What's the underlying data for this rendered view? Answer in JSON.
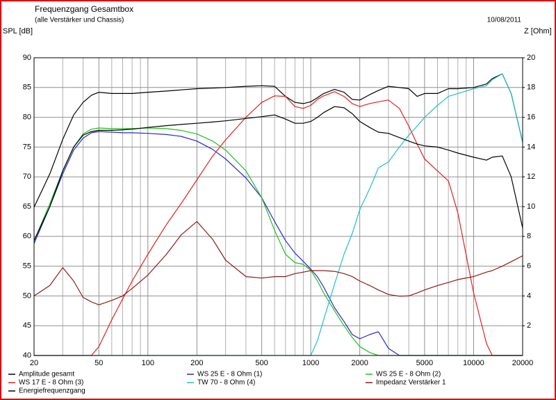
{
  "chart_data": {
    "type": "line",
    "title": "Frequenzgang Gesamtbox",
    "subtitle": "(alle Verstärker und Chassis)",
    "date": "10/08/2011",
    "ylabel": "SPL [dB]",
    "y2label": "Z [Ohm]",
    "log_x": true,
    "grid": true,
    "xlim": [
      20,
      20000
    ],
    "xticks": [
      20,
      50,
      100,
      200,
      500,
      1000,
      2000,
      5000,
      10000,
      20000
    ],
    "xminorticks": [
      30,
      40,
      60,
      70,
      80,
      90,
      300,
      400,
      600,
      700,
      800,
      900,
      3000,
      4000,
      6000,
      7000,
      8000,
      9000
    ],
    "ylim": [
      40,
      90
    ],
    "yticks": [
      40,
      45,
      50,
      55,
      60,
      65,
      70,
      75,
      80,
      85,
      90
    ],
    "y2lim": [
      0,
      20
    ],
    "y2ticks": [
      2,
      4,
      6,
      8,
      10,
      12,
      14,
      16,
      18,
      20
    ],
    "x": [
      20,
      25,
      30,
      35,
      40,
      45,
      50,
      60,
      70,
      80,
      100,
      130,
      160,
      200,
      250,
      300,
      400,
      500,
      600,
      700,
      800,
      900,
      1000,
      1100,
      1200,
      1400,
      1600,
      1800,
      2000,
      2300,
      2600,
      3000,
      3500,
      4000,
      4500,
      5000,
      6000,
      7000,
      8000,
      10000,
      12000,
      13000,
      15000,
      17000,
      20000
    ],
    "series": [
      {
        "name": "Amplitude gesamt",
        "color": "#000000",
        "values": [
          64.9,
          70.5,
          76.3,
          80.4,
          82.5,
          83.7,
          84.2,
          84,
          84,
          84,
          84.2,
          84.4,
          84.6,
          84.8,
          84.9,
          85,
          85.2,
          85.3,
          85.2,
          83.5,
          82.5,
          82.3,
          82.6,
          83.3,
          84,
          84.7,
          84.2,
          83,
          82.9,
          83.8,
          84.5,
          85.2,
          85,
          84.8,
          83.5,
          84,
          84,
          84.8,
          84.8,
          85,
          85.6,
          86.5,
          87.3,
          84,
          75.8
        ]
      },
      {
        "name": "WS 25 E - 8 Ohm (1)",
        "color": "#2828c8",
        "values": [
          58.8,
          65,
          70.5,
          74.5,
          76.5,
          77.4,
          77.6,
          77.5,
          77.4,
          77.4,
          77.3,
          77.1,
          76.8,
          76,
          74.6,
          73,
          69.8,
          66.5,
          62.5,
          59.3,
          57.2,
          55.8,
          54.5,
          53.2,
          51.5,
          48,
          45.7,
          43.5,
          42.8,
          43.5,
          44,
          41.2,
          40,
          40,
          40,
          40,
          40,
          40,
          40,
          40,
          40,
          40,
          40,
          40,
          40
        ]
      },
      {
        "name": "WS 25 E - 8 Ohm (2)",
        "color": "#20c020",
        "values": [
          59.2,
          65.5,
          71,
          75,
          77.2,
          78,
          78.2,
          78.1,
          78.1,
          78.1,
          78.2,
          78.1,
          77.8,
          77.2,
          76,
          74.5,
          71,
          66.5,
          61,
          57,
          55.6,
          55.3,
          54.3,
          52.5,
          50.5,
          47.5,
          45,
          43,
          41.5,
          40.5,
          40,
          40,
          40,
          40,
          40,
          40,
          40,
          40,
          40,
          40,
          40,
          40,
          40,
          40,
          40
        ]
      },
      {
        "name": "WS 17 E - 8 Ohm (3)",
        "color": "#e02020",
        "values": [
          40,
          40,
          40,
          40,
          40,
          40,
          41.5,
          46,
          49.5,
          52.5,
          57,
          62,
          65.5,
          69.5,
          73.5,
          76.2,
          80,
          82.5,
          83.6,
          83.5,
          81.8,
          81.5,
          82,
          83,
          83.6,
          84.3,
          83.5,
          82.3,
          81.8,
          82.3,
          82.6,
          82.9,
          81.5,
          78.5,
          75.5,
          73,
          71,
          69.3,
          64,
          50.5,
          42,
          40,
          40,
          40,
          40
        ]
      },
      {
        "name": "TW 70 - 8 Ohm (4)",
        "color": "#20c0c8",
        "values": [
          40,
          40,
          40,
          40,
          40,
          40,
          40,
          40,
          40,
          40,
          40,
          40,
          40,
          40,
          40,
          40,
          40,
          40,
          40,
          40,
          40,
          40,
          40,
          42.5,
          46,
          52,
          57,
          60.5,
          64.5,
          68,
          71.5,
          72.5,
          75,
          77,
          78.5,
          80,
          82,
          83.5,
          84,
          84.8,
          85.3,
          86.3,
          87.3,
          84,
          75.8
        ]
      },
      {
        "name": "Impedanz Verstärker 1",
        "color": "#8b1a1a",
        "axis": "y2",
        "values": [
          4.0,
          4.7,
          5.9,
          5.0,
          3.9,
          3.6,
          3.4,
          3.7,
          4.0,
          4.5,
          5.4,
          6.8,
          8.1,
          9.0,
          7.8,
          6.4,
          5.3,
          5.2,
          5.3,
          5.3,
          5.5,
          5.6,
          5.7,
          5.7,
          5.7,
          5.65,
          5.5,
          5.3,
          5.0,
          4.7,
          4.4,
          4.1,
          3.98,
          4.0,
          4.2,
          4.4,
          4.7,
          4.9,
          5.1,
          5.3,
          5.6,
          5.7,
          6.0,
          6.3,
          6.7
        ]
      },
      {
        "name": "Energiefrequenzgang",
        "color": "#000000",
        "values": [
          59.3,
          65,
          71,
          75,
          77,
          77.6,
          77.8,
          77.8,
          77.9,
          78,
          78.3,
          78.6,
          78.8,
          79,
          79.2,
          79.4,
          79.8,
          80.1,
          80.4,
          79.7,
          79,
          79,
          79.3,
          80,
          80.8,
          81.8,
          81.6,
          80.6,
          79.3,
          78.3,
          77.5,
          77.3,
          76.6,
          76,
          75.5,
          75.2,
          75,
          74.5,
          74,
          73.3,
          72.8,
          73.3,
          73.5,
          70,
          61.4
        ]
      }
    ]
  }
}
